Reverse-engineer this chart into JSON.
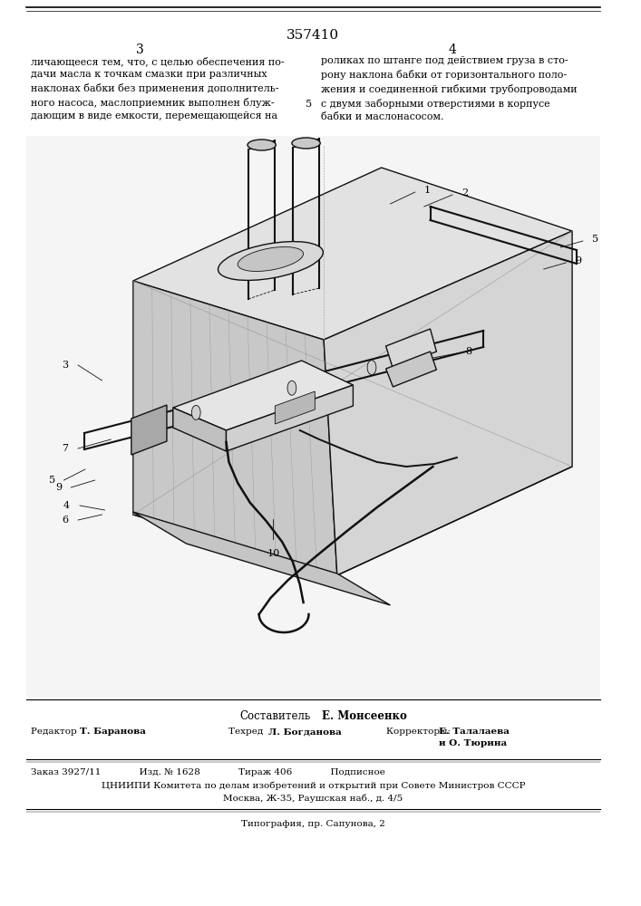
{
  "patent_number": "357410",
  "page_left": "3",
  "page_right": "4",
  "compiler_label": "Составитель",
  "compiler_name": "Е. Монсеенко",
  "editor_label": "Редактор",
  "editor_name": "Т. Баранова",
  "techr_label": "Техред",
  "techr_name": "Л. Богданова",
  "corr_label": "Корректоры:",
  "corr_name1": "Е. Талалаева",
  "corr_name2": "и О. Тюрина",
  "order_line": "Заказ 3927/11             Изд. № 1628             Тираж 406             Подписное",
  "cniippi_line": "ЦНИИПИ Комитета по делам изобретений и открытий при Совете Министров СССР",
  "moscow_line": "Москва, Ж-35, Раушская наб., д. 4/5",
  "typo_line": "Типография, пр. Сапунова, 2",
  "bg_color": "#ffffff",
  "text_color": "#000000",
  "line_color": "#000000"
}
